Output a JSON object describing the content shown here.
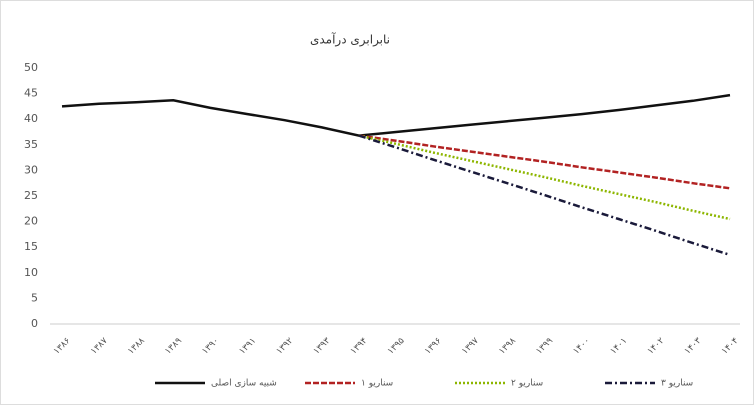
{
  "chart_data": {
    "type": "line",
    "title": "نابرابری درآمدی",
    "categories": [
      "۱۳۸۶",
      "۱۳۸۷",
      "۱۳۸۸",
      "۱۳۸۹",
      "۱۳۹۰",
      "۱۳۹۱",
      "۱۳۹۲",
      "۱۳۹۳",
      "۱۳۹۴",
      "۱۳۹۵",
      "۱۳۹۶",
      "۱۳۹۷",
      "۱۳۹۸",
      "۱۳۹۹",
      "۱۴۰۰",
      "۱۴۰۱",
      "۱۴۰۲",
      "۱۴۰۳",
      "۱۴۰۴"
    ],
    "series": [
      {
        "name": "شبیه سازی اصلی",
        "color": "#111111",
        "dash": "none",
        "values": [
          42.5,
          43,
          43.3,
          43.7,
          42.2,
          41,
          39.8,
          38.4,
          36.8,
          37.5,
          38.2,
          38.9,
          39.6,
          40.3,
          41,
          41.8,
          42.7,
          43.6,
          44.7
        ]
      },
      {
        "name": "سناریو ۱",
        "color": "#b22222",
        "dash": "6 2",
        "values": [
          null,
          null,
          null,
          null,
          null,
          null,
          null,
          null,
          36.8,
          35.8,
          34.7,
          33.7,
          32.7,
          31.7,
          30.6,
          29.6,
          28.6,
          27.5,
          26.5
        ]
      },
      {
        "name": "سناریو ۲",
        "color": "#8db600",
        "dash": "2 2",
        "values": [
          null,
          null,
          null,
          null,
          null,
          null,
          null,
          null,
          36.8,
          35.2,
          33.5,
          31.9,
          30.3,
          28.7,
          27,
          25.4,
          23.8,
          22.1,
          20.5
        ]
      },
      {
        "name": "سناریو ۳",
        "color": "#1a1a3a",
        "dash": "7 3 2 3",
        "values": [
          null,
          null,
          null,
          null,
          null,
          null,
          null,
          null,
          36.8,
          34.5,
          32.1,
          29.8,
          27.5,
          25.2,
          22.8,
          20.5,
          18.2,
          15.8,
          13.5
        ]
      }
    ],
    "ylim": [
      0,
      50
    ],
    "yticks": [
      0,
      5,
      10,
      15,
      20,
      25,
      30,
      35,
      40,
      45,
      50
    ],
    "grid": false,
    "legend": "bottom"
  }
}
